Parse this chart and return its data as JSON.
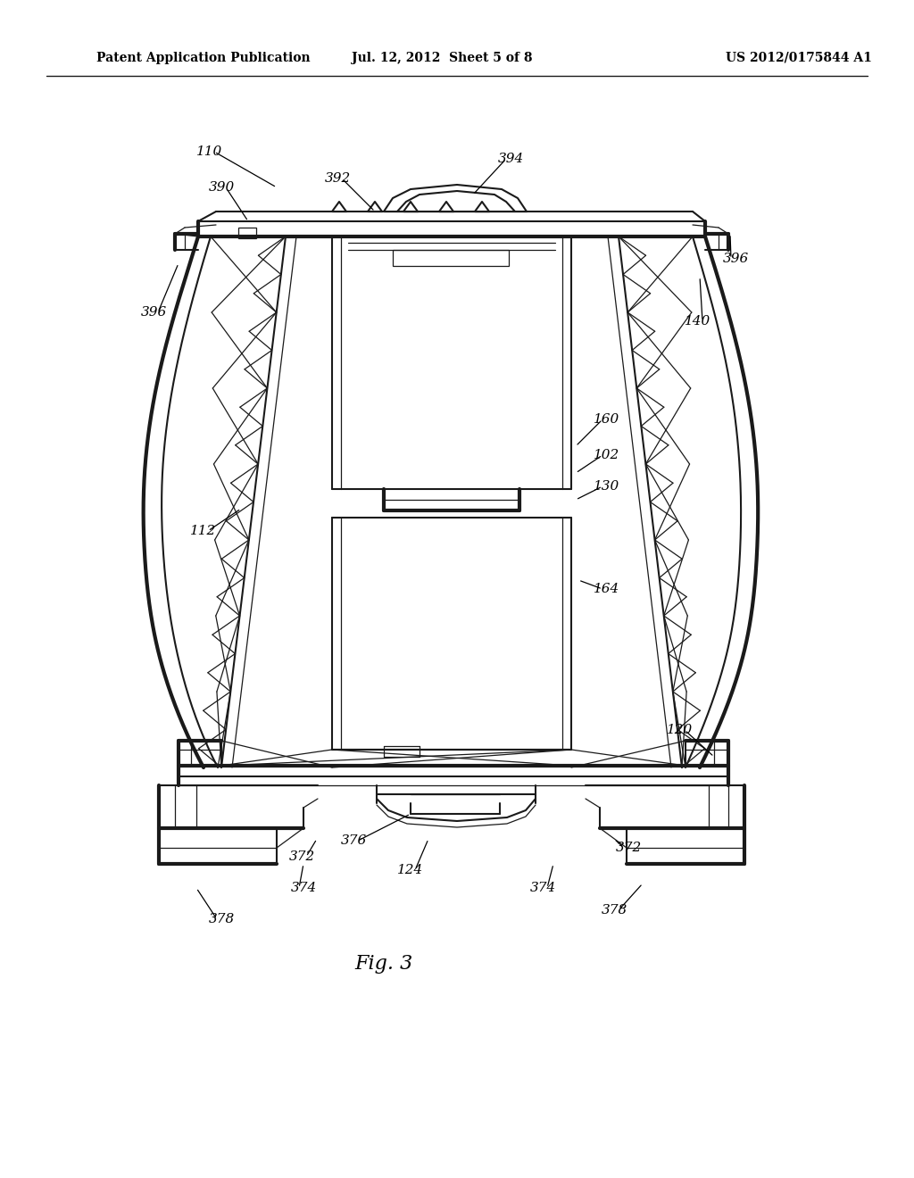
{
  "title_left": "Patent Application Publication",
  "title_mid": "Jul. 12, 2012  Sheet 5 of 8",
  "title_right": "US 2012/0175844 A1",
  "fig_label": "Fig. 3",
  "background_color": "#ffffff",
  "line_color": "#1a1a1a"
}
